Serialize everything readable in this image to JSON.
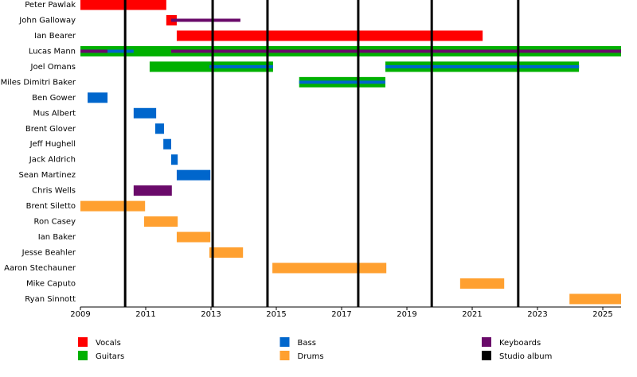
{
  "chart_data": {
    "type": "timeline",
    "categories": [
      "Peter Pawlak",
      "John Galloway",
      "Ian Bearer",
      "Lucas Mann",
      "Joel Omans",
      "Miles Dimitri Baker",
      "Ben Gower",
      "Mus Albert",
      "Brent Glover",
      "Jeff Hughell",
      "Jack Aldrich",
      "Sean Martinez",
      "Chris Wells",
      "Brent Siletto",
      "Ron Casey",
      "Ian Baker",
      "Jesse Beahler",
      "Aaron Stechauner",
      "Mike Caputo",
      "Ryan Sinnott"
    ],
    "series": [
      {
        "name": "Vocals",
        "color": "#ff0000",
        "values": [
          [
            [
              2009,
              2011.63
            ]
          ],
          [
            [
              2011.63,
              2011.95
            ]
          ],
          [
            [
              2011.95,
              2021.32
            ]
          ],
          null,
          null,
          null,
          null,
          null,
          null,
          null,
          null,
          null,
          null,
          null,
          null,
          null,
          null,
          null,
          null,
          null
        ]
      },
      {
        "name": "Guitars",
        "color": "#00b000",
        "values": [
          null,
          null,
          null,
          [
            [
              2009,
              2025.56
            ]
          ],
          [
            [
              2011.12,
              2014.9
            ],
            [
              2018.34,
              2024.27
            ]
          ],
          [
            [
              2015.7,
              2018.34
            ]
          ],
          null,
          null,
          null,
          null,
          null,
          null,
          null,
          null,
          null,
          null,
          null,
          null,
          null,
          null
        ]
      },
      {
        "name": "Bass",
        "color": "#0066cc",
        "values": [
          null,
          null,
          null,
          [
            [
              2009,
              2010.63
            ]
          ],
          [
            [
              2012.95,
              2014.9
            ],
            [
              2018.34,
              2024.27
            ]
          ],
          [
            [
              2015.7,
              2018.34
            ]
          ],
          [
            [
              2009.22,
              2009.83
            ]
          ],
          [
            [
              2010.63,
              2011.32
            ]
          ],
          [
            [
              2011.29,
              2011.56
            ]
          ],
          [
            [
              2011.54,
              2011.78
            ]
          ],
          [
            [
              2011.78,
              2011.98
            ]
          ],
          [
            [
              2011.95,
              2012.98
            ]
          ],
          null,
          null,
          null,
          null,
          null,
          null,
          null,
          null
        ]
      },
      {
        "name": "Drums",
        "color": "#ffa030",
        "values": [
          null,
          null,
          null,
          null,
          null,
          null,
          null,
          null,
          null,
          null,
          null,
          null,
          null,
          [
            [
              2009,
              2010.98
            ]
          ],
          [
            [
              2010.95,
              2011.98
            ]
          ],
          [
            [
              2011.95,
              2012.98
            ]
          ],
          [
            [
              2012.95,
              2013.98
            ]
          ],
          [
            [
              2014.88,
              2018.37
            ]
          ],
          [
            [
              2020.63,
              2021.98
            ]
          ],
          [
            [
              2023.98,
              2025.56
            ]
          ]
        ]
      },
      {
        "name": "Keyboards",
        "color": "#6a0a6a",
        "values": [
          null,
          [
            [
              2011.78,
              2013.9
            ]
          ],
          null,
          [
            [
              2009,
              2009.83
            ],
            [
              2011.78,
              2025.56
            ]
          ],
          null,
          null,
          null,
          null,
          null,
          null,
          null,
          null,
          [
            [
              2010.63,
              2011.8
            ]
          ],
          null,
          null,
          null,
          null,
          null,
          null,
          null
        ]
      }
    ],
    "markers": {
      "name": "Studio album",
      "color": "#000000",
      "values": [
        2010.37,
        2013.05,
        2014.73,
        2017.51,
        2019.76,
        2022.41
      ]
    },
    "xlim": [
      2009,
      2025.56
    ],
    "xticks": [
      2009,
      2011,
      2013,
      2015,
      2017,
      2019,
      2021,
      2023,
      2025
    ]
  }
}
